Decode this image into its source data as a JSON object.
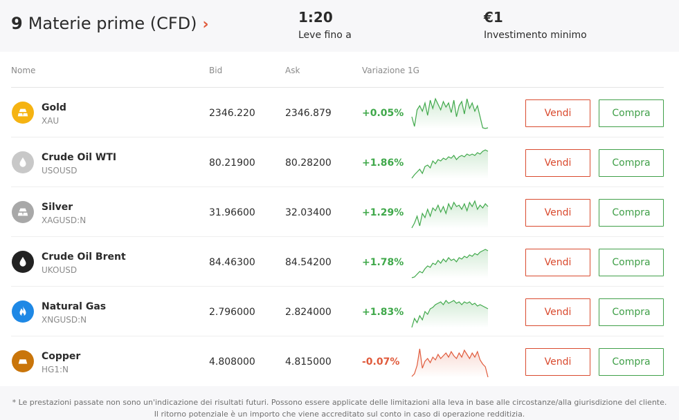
{
  "header": {
    "count": "9",
    "title": "Materie prime (CFD)",
    "arrow": "›",
    "leverage": {
      "value": "1:20",
      "label": "Leve fino a"
    },
    "min_investment": {
      "value": "€1",
      "label": "Investimento minimo"
    }
  },
  "table": {
    "columns": {
      "name": "Nome",
      "bid": "Bid",
      "ask": "Ask",
      "change": "Variazione 1G"
    },
    "sell_label": "Vendi",
    "buy_label": "Compra",
    "rows": [
      {
        "name": "Gold",
        "symbol": "XAU",
        "bid": "2346.220",
        "ask": "2346.879",
        "change": "+0.05%",
        "direction": "up",
        "icon": "gold-bar-icon",
        "icon_color": "#f5b312",
        "spark": [
          30,
          44,
          20,
          14,
          22,
          10,
          28,
          6,
          18,
          4,
          12,
          20,
          8,
          16,
          10,
          24,
          6,
          30,
          14,
          8,
          26,
          4,
          18,
          10,
          22,
          14,
          30,
          46,
          50,
          46
        ]
      },
      {
        "name": "Crude Oil WTI",
        "symbol": "USOUSD",
        "bid": "80.21900",
        "ask": "80.28200",
        "change": "+1.86%",
        "direction": "up",
        "icon": "oil-drop-icon",
        "icon_color": "#c8c8c8",
        "spark": [
          48,
          42,
          38,
          34,
          40,
          30,
          28,
          32,
          22,
          26,
          20,
          22,
          18,
          20,
          16,
          18,
          14,
          20,
          16,
          14,
          16,
          12,
          14,
          12,
          14,
          10,
          12,
          8,
          6,
          8
        ]
      },
      {
        "name": "Silver",
        "symbol": "XAGUSD:N",
        "bid": "31.96600",
        "ask": "32.03400",
        "change": "+1.29%",
        "direction": "up",
        "icon": "silver-bar-icon",
        "icon_color": "#a8a8a8",
        "spark": [
          48,
          40,
          30,
          44,
          26,
          32,
          20,
          30,
          18,
          22,
          14,
          24,
          16,
          26,
          12,
          20,
          10,
          16,
          14,
          20,
          12,
          22,
          10,
          16,
          8,
          20,
          14,
          18,
          12,
          16
        ]
      },
      {
        "name": "Crude Oil Brent",
        "symbol": "UKOUSD",
        "bid": "84.46300",
        "ask": "84.54200",
        "change": "+1.78%",
        "direction": "up",
        "icon": "oil-drop-icon",
        "icon_color": "#222222",
        "spark": [
          50,
          46,
          42,
          38,
          40,
          34,
          30,
          32,
          26,
          28,
          22,
          26,
          20,
          24,
          18,
          22,
          20,
          24,
          18,
          20,
          16,
          18,
          14,
          16,
          12,
          14,
          10,
          8,
          6,
          8
        ]
      },
      {
        "name": "Natural Gas",
        "symbol": "XNGUSD:N",
        "bid": "2.796000",
        "ask": "2.824000",
        "change": "+1.83%",
        "direction": "up",
        "icon": "flame-icon",
        "icon_color": "#1e88e5",
        "spark": [
          48,
          34,
          40,
          30,
          36,
          24,
          28,
          20,
          18,
          14,
          12,
          10,
          14,
          8,
          12,
          10,
          8,
          12,
          10,
          14,
          10,
          12,
          10,
          14,
          12,
          16,
          14,
          16,
          18,
          20
        ]
      },
      {
        "name": "Copper",
        "symbol": "HG1:N",
        "bid": "4.808000",
        "ask": "4.815000",
        "change": "-0.07%",
        "direction": "down",
        "icon": "copper-bar-icon",
        "icon_color": "#c9750a",
        "spark": [
          46,
          42,
          30,
          6,
          34,
          24,
          20,
          26,
          18,
          22,
          14,
          20,
          16,
          12,
          18,
          10,
          16,
          20,
          12,
          18,
          8,
          14,
          20,
          12,
          18,
          10,
          22,
          28,
          32,
          48
        ]
      }
    ]
  },
  "footnote": {
    "line1": "* Le prestazioni passate non sono un'indicazione dei risultati futuri. Possono essere applicate delle limitazioni alla leva in base alle circostanze/alla giurisdizione del cliente.",
    "line2": "Il ritorno potenziale è un importo che viene accreditato sul conto in caso di operazione redditizia."
  },
  "colors": {
    "up": "#3fa84a",
    "down": "#e05a3b",
    "sell": "#d9492d",
    "buy": "#3f9f48"
  }
}
